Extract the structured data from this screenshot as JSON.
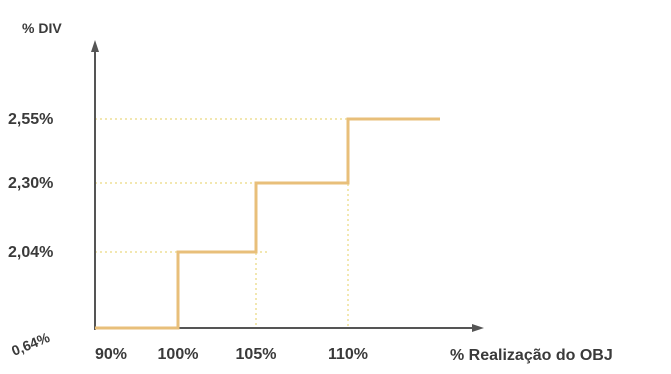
{
  "chart_data": {
    "type": "line",
    "step": true,
    "ylabel": "% DIV",
    "xlabel": "% Realização do OBJ",
    "x_tick_labels": [
      "90%",
      "100%",
      "105%",
      "110%"
    ],
    "y_tick_labels": [
      "2,55%",
      "2,30%",
      "2,04%"
    ],
    "origin_label": "0,64%",
    "points": [
      {
        "x": 90,
        "y": 0.64
      },
      {
        "x": 100,
        "y": 0.64
      },
      {
        "x": 100,
        "y": 2.04
      },
      {
        "x": 105,
        "y": 2.04
      },
      {
        "x": 105,
        "y": 2.3
      },
      {
        "x": 110,
        "y": 2.3
      },
      {
        "x": 110,
        "y": 2.55
      },
      {
        "x": 115,
        "y": 2.55
      }
    ],
    "guides": [
      {
        "x": 100,
        "y": 2.04
      },
      {
        "x": 105,
        "y": 2.3
      },
      {
        "x": 110,
        "y": 2.55
      }
    ],
    "grid": false,
    "line_color": "#e8bf7a",
    "guide_color": "#f2e7b0",
    "axis_color": "#555555"
  }
}
